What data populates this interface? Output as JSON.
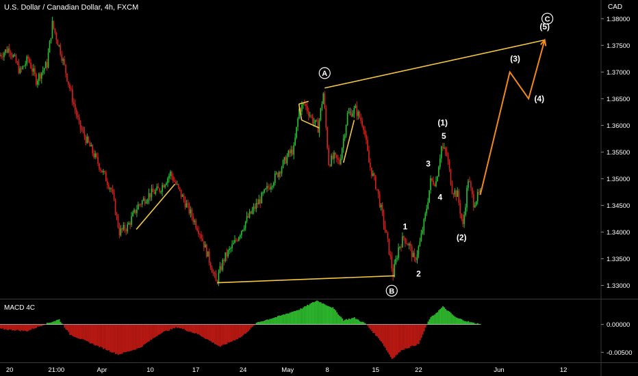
{
  "header": {
    "symbol_title": "U.S. Dollar / Canadian Dollar, 4h, FXCM",
    "currency": "CAD"
  },
  "colors": {
    "up": "#26c535",
    "down": "#e0201b",
    "wave": "#f5c843",
    "projection": "#f58a16",
    "macd_up": "#2fbf2f",
    "macd_down": "#c41a14",
    "zero_line": "#cfcfcf",
    "divider": "#3a3a3a"
  },
  "chart_data": {
    "type": "candlestick",
    "title": "U.S. Dollar / Canadian Dollar, 4h, FXCM",
    "price_axis": {
      "label": "CAD",
      "ylim": [
        1.3275,
        1.3835
      ],
      "ticks": [
        "1.38000",
        "1.37500",
        "1.37000",
        "1.36500",
        "1.36000",
        "1.35500",
        "1.35000",
        "1.34500",
        "1.34000",
        "1.33500",
        "1.33000"
      ]
    },
    "x_axis": {
      "ticks": [
        "20",
        "21:00",
        "Apr",
        "10",
        "17",
        "24",
        "May",
        "8",
        "15",
        "22",
        "Jun",
        "12"
      ]
    },
    "price_path": [
      {
        "t": 0,
        "p": 1.373
      },
      {
        "t": 2,
        "p": 1.3745
      },
      {
        "t": 4,
        "p": 1.37
      },
      {
        "t": 5.5,
        "p": 1.3725
      },
      {
        "t": 7,
        "p": 1.3685
      },
      {
        "t": 9,
        "p": 1.3715
      },
      {
        "t": 10,
        "p": 1.379
      },
      {
        "t": 11.5,
        "p": 1.374
      },
      {
        "t": 13,
        "p": 1.368
      },
      {
        "t": 15,
        "p": 1.36
      },
      {
        "t": 17,
        "p": 1.356
      },
      {
        "t": 19,
        "p": 1.352
      },
      {
        "t": 21,
        "p": 1.348
      },
      {
        "t": 22.5,
        "p": 1.34
      },
      {
        "t": 24,
        "p": 1.341
      },
      {
        "t": 26,
        "p": 1.345
      },
      {
        "t": 28,
        "p": 1.347
      },
      {
        "t": 30,
        "p": 1.348
      },
      {
        "t": 32,
        "p": 1.351
      },
      {
        "t": 33.5,
        "p": 1.348
      },
      {
        "t": 35.5,
        "p": 1.344
      },
      {
        "t": 37.5,
        "p": 1.34
      },
      {
        "t": 39.5,
        "p": 1.334
      },
      {
        "t": 40.5,
        "p": 1.3305
      },
      {
        "t": 42,
        "p": 1.335
      },
      {
        "t": 44,
        "p": 1.338
      },
      {
        "t": 46,
        "p": 1.342
      },
      {
        "t": 48,
        "p": 1.345
      },
      {
        "t": 50,
        "p": 1.348
      },
      {
        "t": 52,
        "p": 1.351
      },
      {
        "t": 54,
        "p": 1.3545
      },
      {
        "t": 55,
        "p": 1.3555
      },
      {
        "t": 56,
        "p": 1.363
      },
      {
        "t": 57,
        "p": 1.364
      },
      {
        "t": 58.5,
        "p": 1.361
      },
      {
        "t": 59.5,
        "p": 1.3595
      },
      {
        "t": 60.5,
        "p": 1.366
      },
      {
        "t": 61.5,
        "p": 1.353
      },
      {
        "t": 62.5,
        "p": 1.354
      },
      {
        "t": 63.5,
        "p": 1.353
      },
      {
        "t": 65,
        "p": 1.362
      },
      {
        "t": 66.5,
        "p": 1.363
      },
      {
        "t": 68,
        "p": 1.36
      },
      {
        "t": 69,
        "p": 1.353
      },
      {
        "t": 70.5,
        "p": 1.348
      },
      {
        "t": 71.5,
        "p": 1.343
      },
      {
        "t": 72.5,
        "p": 1.338
      },
      {
        "t": 73.5,
        "p": 1.332
      },
      {
        "t": 74.5,
        "p": 1.337
      },
      {
        "t": 75.5,
        "p": 1.339
      },
      {
        "t": 76.5,
        "p": 1.3375
      },
      {
        "t": 77.5,
        "p": 1.3345
      },
      {
        "t": 78.5,
        "p": 1.338
      },
      {
        "t": 79.5,
        "p": 1.343
      },
      {
        "t": 80.5,
        "p": 1.3495
      },
      {
        "t": 81.5,
        "p": 1.3495
      },
      {
        "t": 82.5,
        "p": 1.356
      },
      {
        "t": 83.5,
        "p": 1.3545
      },
      {
        "t": 84.5,
        "p": 1.348
      },
      {
        "t": 85.5,
        "p": 1.347
      },
      {
        "t": 86.5,
        "p": 1.341
      },
      {
        "t": 87.5,
        "p": 1.35
      },
      {
        "t": 88.5,
        "p": 1.3455
      },
      {
        "t": 89.5,
        "p": 1.347
      }
    ],
    "wave_lines": [
      {
        "name": "wave-line-a-b",
        "points": [
          [
            25.4,
            1.3405
          ],
          [
            32.6,
            1.349
          ]
        ]
      },
      {
        "name": "wave-line-b-c",
        "points": [
          [
            40.5,
            1.3305
          ],
          [
            73.5,
            1.3318
          ]
        ]
      },
      {
        "name": "wave-line-flag-top",
        "points": [
          [
            55.7,
            1.364
          ],
          [
            57.5,
            1.3645
          ]
        ]
      },
      {
        "name": "wave-line-flag-left",
        "points": [
          [
            55.7,
            1.364
          ],
          [
            56.2,
            1.361
          ]
        ]
      },
      {
        "name": "wave-line-flag-bottom",
        "points": [
          [
            56.2,
            1.361
          ],
          [
            59.5,
            1.3595
          ]
        ]
      },
      {
        "name": "wave-line-recovery",
        "points": [
          [
            64.0,
            1.353
          ],
          [
            66.0,
            1.361
          ]
        ]
      },
      {
        "name": "wave-line-a-to-c",
        "points": [
          [
            60.5,
            1.367
          ],
          [
            101.5,
            1.376
          ]
        ]
      }
    ],
    "projection": [
      [
        89.5,
        1.347
      ],
      [
        95.0,
        1.37
      ],
      [
        98.5,
        1.365
      ],
      [
        101.5,
        1.376
      ]
    ],
    "wave_labels": [
      {
        "text": "A",
        "circled": true,
        "t": 60.5,
        "p": 1.3698
      },
      {
        "text": "B",
        "circled": true,
        "t": 73.0,
        "p": 1.329
      },
      {
        "text": "C",
        "circled": true,
        "t": 102.0,
        "p": 1.38
      },
      {
        "text": "(5)",
        "circled": false,
        "t": 101.5,
        "p": 1.3785
      },
      {
        "text": "(3)",
        "circled": false,
        "t": 96.0,
        "p": 1.3725
      },
      {
        "text": "(4)",
        "circled": false,
        "t": 100.5,
        "p": 1.365
      },
      {
        "text": "(1)",
        "circled": false,
        "t": 82.5,
        "p": 1.3605
      },
      {
        "text": "5",
        "circled": false,
        "t": 82.7,
        "p": 1.358
      },
      {
        "text": "3",
        "circled": false,
        "t": 79.8,
        "p": 1.3528
      },
      {
        "text": "4",
        "circled": false,
        "t": 82.0,
        "p": 1.3465
      },
      {
        "text": "1",
        "circled": false,
        "t": 75.5,
        "p": 1.341
      },
      {
        "text": "2",
        "circled": false,
        "t": 78.0,
        "p": 1.3322
      },
      {
        "text": "(2)",
        "circled": false,
        "t": 86.0,
        "p": 1.339
      }
    ],
    "macd": {
      "label": "MACD 4C",
      "ylim": [
        -0.0068,
        0.0045
      ],
      "ticks": [
        "0.00000",
        "-0.00500"
      ],
      "path": [
        {
          "t": 0,
          "v": -0.0008
        },
        {
          "t": 5,
          "v": -0.0012
        },
        {
          "t": 9,
          "v": 0.0003
        },
        {
          "t": 11,
          "v": 0.0009
        },
        {
          "t": 13,
          "v": -0.0018
        },
        {
          "t": 19,
          "v": -0.0042
        },
        {
          "t": 22,
          "v": -0.0054
        },
        {
          "t": 26,
          "v": -0.0042
        },
        {
          "t": 30,
          "v": -0.0015
        },
        {
          "t": 33,
          "v": -0.0005
        },
        {
          "t": 37,
          "v": -0.0018
        },
        {
          "t": 41,
          "v": -0.004
        },
        {
          "t": 45,
          "v": -0.0022
        },
        {
          "t": 48,
          "v": 0.0004
        },
        {
          "t": 52,
          "v": 0.0015
        },
        {
          "t": 56,
          "v": 0.0028
        },
        {
          "t": 59,
          "v": 0.0043
        },
        {
          "t": 62,
          "v": 0.003
        },
        {
          "t": 64,
          "v": 0.0008
        },
        {
          "t": 66,
          "v": 0.0012
        },
        {
          "t": 68,
          "v": 0.0002
        },
        {
          "t": 71,
          "v": -0.003
        },
        {
          "t": 73,
          "v": -0.0062
        },
        {
          "t": 75,
          "v": -0.0045
        },
        {
          "t": 78,
          "v": -0.0035
        },
        {
          "t": 80,
          "v": 0.001
        },
        {
          "t": 82.5,
          "v": 0.0032
        },
        {
          "t": 85,
          "v": 0.0012
        },
        {
          "t": 88,
          "v": 0.0003
        },
        {
          "t": 89.5,
          "v": 0.0001
        }
      ]
    }
  }
}
